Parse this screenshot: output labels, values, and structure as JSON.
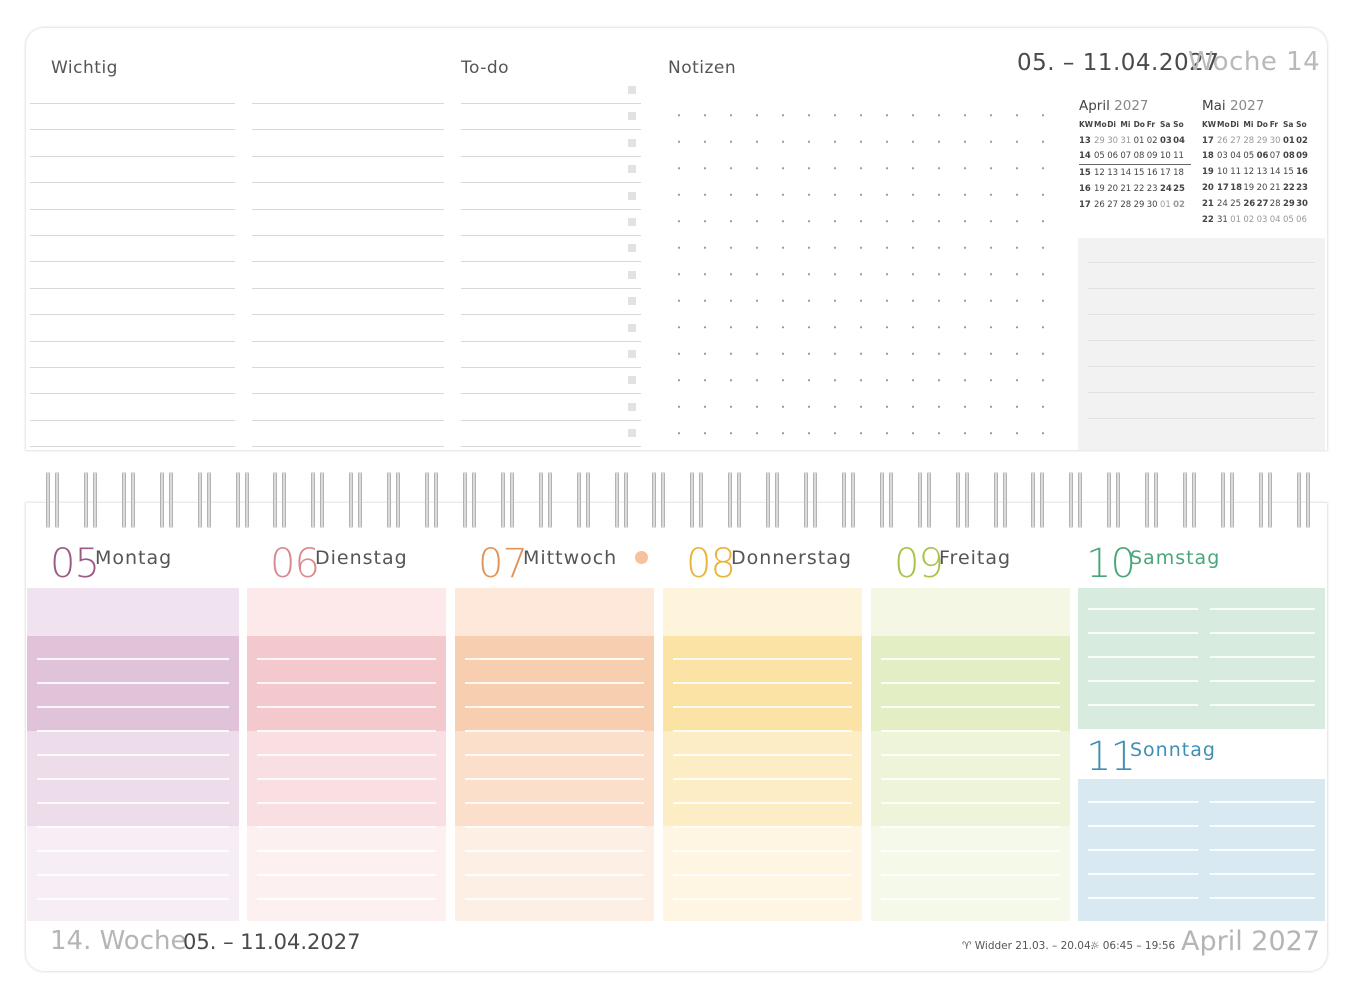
{
  "header": {
    "wichtig": "Wichtig",
    "todo": "To-do",
    "notizen": "Notizen",
    "week_range": "05. – 11.04.2027",
    "week_title": "Woche 14"
  },
  "mini_calendars": [
    {
      "month": "April",
      "year": "2027",
      "weekday_header": [
        "KW",
        "Mo",
        "Di",
        "Mi",
        "Do",
        "Fr",
        "Sa",
        "So"
      ],
      "rows": [
        [
          "13",
          "29",
          "30",
          "31",
          "01",
          "02",
          "03",
          "04"
        ],
        [
          "14",
          "05",
          "06",
          "07",
          "08",
          "09",
          "10",
          "11"
        ],
        [
          "15",
          "12",
          "13",
          "14",
          "15",
          "16",
          "17",
          "18"
        ],
        [
          "16",
          "19",
          "20",
          "21",
          "22",
          "23",
          "24",
          "25"
        ],
        [
          "17",
          "26",
          "27",
          "28",
          "29",
          "30",
          "01",
          "02"
        ]
      ]
    },
    {
      "month": "Mai",
      "year": "2027",
      "weekday_header": [
        "KW",
        "Mo",
        "Di",
        "Mi",
        "Do",
        "Fr",
        "Sa",
        "So"
      ],
      "rows": [
        [
          "17",
          "26",
          "27",
          "28",
          "29",
          "30",
          "01",
          "02"
        ],
        [
          "18",
          "03",
          "04",
          "05",
          "06",
          "07",
          "08",
          "09"
        ],
        [
          "19",
          "10",
          "11",
          "12",
          "13",
          "14",
          "15",
          "16"
        ],
        [
          "20",
          "17",
          "18",
          "19",
          "20",
          "21",
          "22",
          "23"
        ],
        [
          "21",
          "24",
          "25",
          "26",
          "27",
          "28",
          "29",
          "30"
        ],
        [
          "22",
          "31",
          "01",
          "02",
          "03",
          "04",
          "05",
          "06"
        ]
      ]
    }
  ],
  "days": [
    {
      "num": "05",
      "name": "Montag",
      "color": "#9c5a86"
    },
    {
      "num": "06",
      "name": "Dienstag",
      "color": "#d98a8f"
    },
    {
      "num": "07",
      "name": "Mittwoch",
      "color": "#e0955c"
    },
    {
      "num": "08",
      "name": "Donnerstag",
      "color": "#e8b53c"
    },
    {
      "num": "09",
      "name": "Freitag",
      "color": "#a8c24e"
    },
    {
      "num": "10",
      "name": "Samstag",
      "color": "#4aa57a"
    },
    {
      "num": "11",
      "name": "Sonntag",
      "color": "#3f8fb4"
    }
  ],
  "footer": {
    "week": "14. Woche",
    "range": "05. – 11.04.2027",
    "sign": "♈ Widder 21.03. – 20.04.",
    "sun": "☼ 06:45 – 19:56",
    "month": "April 2027"
  }
}
